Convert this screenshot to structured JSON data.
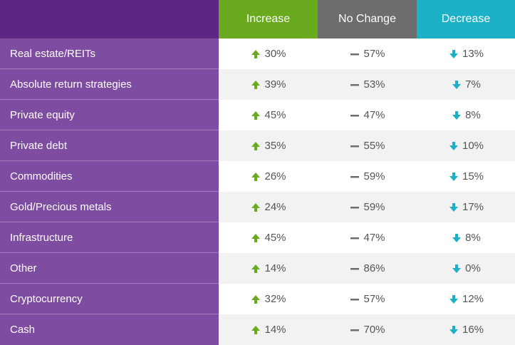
{
  "chart_data": {
    "type": "table",
    "columns": [
      "Increase",
      "No Change",
      "Decrease"
    ],
    "rows": [
      {
        "label": "Real estate/REITs",
        "values": [
          "30%",
          "57%",
          "13%"
        ]
      },
      {
        "label": "Absolute return strategies",
        "values": [
          "39%",
          "53%",
          "7%"
        ]
      },
      {
        "label": "Private equity",
        "values": [
          "45%",
          "47%",
          "8%"
        ]
      },
      {
        "label": "Private debt",
        "values": [
          "35%",
          "55%",
          "10%"
        ]
      },
      {
        "label": "Commodities",
        "values": [
          "26%",
          "59%",
          "15%"
        ]
      },
      {
        "label": "Gold/Precious metals",
        "values": [
          "24%",
          "59%",
          "17%"
        ]
      },
      {
        "label": "Infrastructure",
        "values": [
          "45%",
          "47%",
          "8%"
        ]
      },
      {
        "label": "Other",
        "values": [
          "14%",
          "86%",
          "0%"
        ]
      },
      {
        "label": "Cryptocurrency",
        "values": [
          "32%",
          "57%",
          "12%"
        ]
      },
      {
        "label": "Cash",
        "values": [
          "14%",
          "70%",
          "16%"
        ]
      }
    ],
    "column_icons": [
      "arrow-up-icon",
      "dash-icon",
      "arrow-down-icon"
    ],
    "colors": {
      "header_corner": "#5e2585",
      "row_label_bg": "#7e4ca1",
      "increase": "#6aaa1e",
      "no_change": "#6d6d6d",
      "decrease": "#1db1c8"
    }
  }
}
